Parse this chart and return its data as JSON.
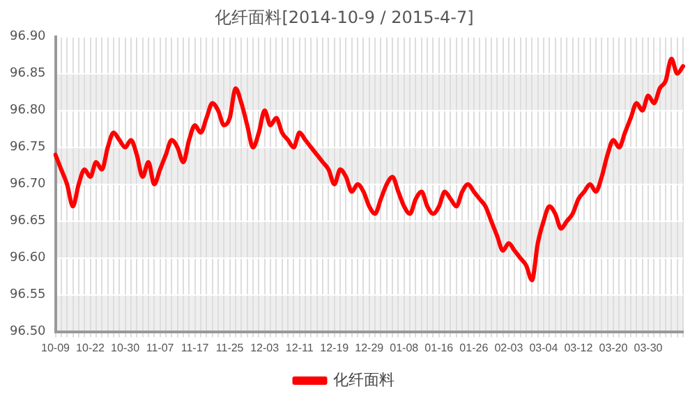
{
  "chart_data": {
    "type": "line",
    "title": "化纤面料[2014-10-9 / 2015-4-7]",
    "categories": [
      "10-09",
      null,
      null,
      null,
      null,
      null,
      "10-22",
      null,
      null,
      null,
      null,
      null,
      "10-30",
      null,
      null,
      null,
      null,
      null,
      "11-07",
      null,
      null,
      null,
      null,
      null,
      "11-17",
      null,
      null,
      null,
      null,
      null,
      "11-25",
      null,
      null,
      null,
      null,
      null,
      "12-03",
      null,
      null,
      null,
      null,
      null,
      "12-11",
      null,
      null,
      null,
      null,
      null,
      "12-19",
      null,
      null,
      null,
      null,
      null,
      "12-29",
      null,
      null,
      null,
      null,
      null,
      "01-08",
      null,
      null,
      null,
      null,
      null,
      "01-16",
      null,
      null,
      null,
      null,
      null,
      "01-26",
      null,
      null,
      null,
      null,
      null,
      "02-03",
      null,
      null,
      null,
      null,
      null,
      "03-04",
      null,
      null,
      null,
      null,
      null,
      "03-12",
      null,
      null,
      null,
      null,
      null,
      "03-20",
      null,
      null,
      null,
      null,
      null,
      "03-30",
      null,
      null,
      null,
      null,
      null,
      null
    ],
    "series": [
      {
        "name": "化纤面料",
        "color": "#ff0000",
        "values": [
          96.74,
          96.72,
          96.7,
          96.67,
          96.7,
          96.72,
          96.71,
          96.73,
          96.72,
          96.75,
          96.77,
          96.76,
          96.75,
          96.76,
          96.74,
          96.71,
          96.73,
          96.7,
          96.72,
          96.74,
          96.76,
          96.75,
          96.73,
          96.76,
          96.78,
          96.77,
          96.79,
          96.81,
          96.8,
          96.78,
          96.79,
          96.83,
          96.81,
          96.78,
          96.75,
          96.77,
          96.8,
          96.78,
          96.79,
          96.77,
          96.76,
          96.75,
          96.77,
          96.76,
          96.75,
          96.74,
          96.73,
          96.72,
          96.7,
          96.72,
          96.71,
          96.69,
          96.7,
          96.69,
          96.67,
          96.66,
          96.68,
          96.7,
          96.71,
          96.69,
          96.67,
          96.66,
          96.68,
          96.69,
          96.67,
          96.66,
          96.67,
          96.69,
          96.68,
          96.67,
          96.69,
          96.7,
          96.69,
          96.68,
          96.67,
          96.65,
          96.63,
          96.61,
          96.62,
          96.61,
          96.6,
          96.59,
          96.57,
          96.62,
          96.65,
          96.67,
          96.66,
          96.64,
          96.65,
          96.66,
          96.68,
          96.69,
          96.7,
          96.69,
          96.71,
          96.74,
          96.76,
          96.75,
          96.77,
          96.79,
          96.81,
          96.8,
          96.82,
          96.81,
          96.83,
          96.84,
          96.87,
          96.85,
          96.86
        ]
      }
    ],
    "ylim": [
      96.5,
      96.9
    ],
    "yticks": [
      {
        "value": 96.5,
        "label": "96.50"
      },
      {
        "value": 96.55,
        "label": "96.55"
      },
      {
        "value": 96.6,
        "label": "96.60"
      },
      {
        "value": 96.65,
        "label": "96.65"
      },
      {
        "value": 96.7,
        "label": "96.70"
      },
      {
        "value": 96.75,
        "label": "96.75"
      },
      {
        "value": 96.8,
        "label": "96.80"
      },
      {
        "value": 96.85,
        "label": "96.85"
      },
      {
        "value": 96.9,
        "label": "96.90"
      }
    ],
    "grid": true,
    "legend": "bottom",
    "marker": "none",
    "line_style": "solid"
  }
}
